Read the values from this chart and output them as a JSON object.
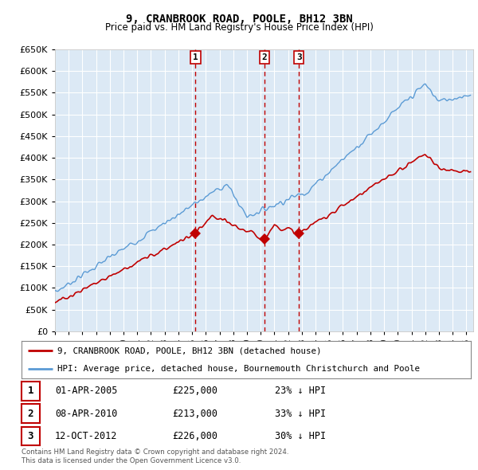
{
  "title": "9, CRANBROOK ROAD, POOLE, BH12 3BN",
  "subtitle": "Price paid vs. HM Land Registry's House Price Index (HPI)",
  "ylim": [
    0,
    650000
  ],
  "yticks": [
    0,
    50000,
    100000,
    150000,
    200000,
    250000,
    300000,
    350000,
    400000,
    450000,
    500000,
    550000,
    600000,
    650000
  ],
  "background_color": "#ffffff",
  "plot_bg_color": "#dce9f5",
  "grid_color": "#ffffff",
  "hpi_color": "#5b9bd5",
  "price_color": "#c00000",
  "sale_marker_color": "#c00000",
  "vertical_line_color": "#c00000",
  "sale_events": [
    {
      "label": "1",
      "date_x": 2005.25,
      "price": 225000,
      "date_str": "01-APR-2005",
      "price_str": "£225,000",
      "pct_str": "23% ↓ HPI"
    },
    {
      "label": "2",
      "date_x": 2010.27,
      "price": 213000,
      "date_str": "08-APR-2010",
      "price_str": "£213,000",
      "pct_str": "33% ↓ HPI"
    },
    {
      "label": "3",
      "date_x": 2012.79,
      "price": 226000,
      "date_str": "12-OCT-2012",
      "price_str": "£226,000",
      "pct_str": "30% ↓ HPI"
    }
  ],
  "legend_line1": "9, CRANBROOK ROAD, POOLE, BH12 3BN (detached house)",
  "legend_line2": "HPI: Average price, detached house, Bournemouth Christchurch and Poole",
  "footer1": "Contains HM Land Registry data © Crown copyright and database right 2024.",
  "footer2": "This data is licensed under the Open Government Licence v3.0.",
  "xmin": 1995,
  "xmax": 2025.5
}
